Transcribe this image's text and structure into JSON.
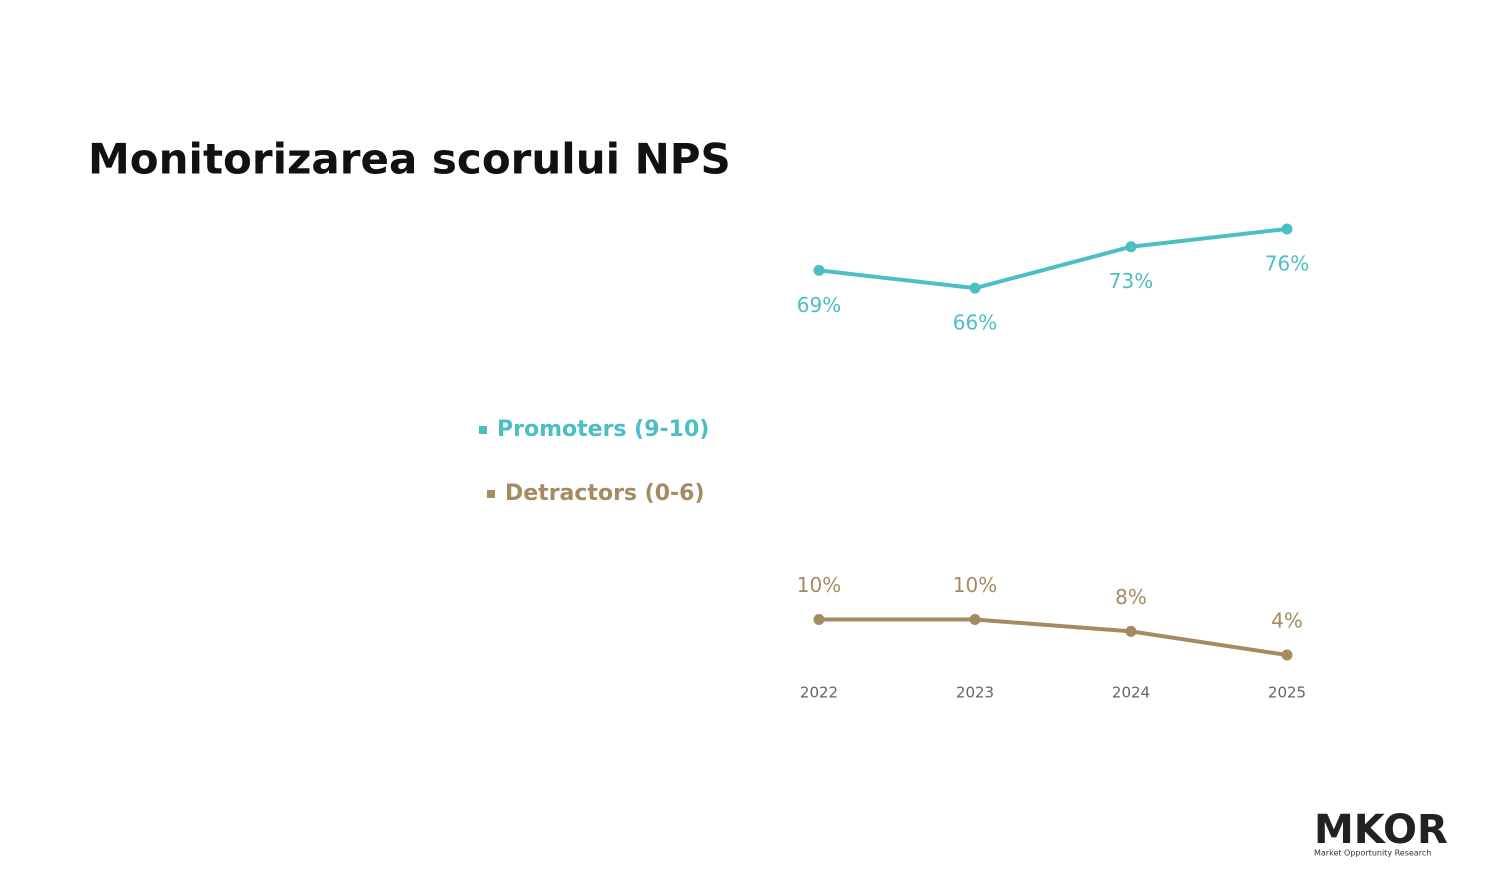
{
  "chart_data": {
    "type": "line",
    "title": "Monitorizarea scorului NPS",
    "categories": [
      "2022",
      "2023",
      "2024",
      "2025"
    ],
    "series": [
      {
        "name": "Promoters (9-10)",
        "color": "#4bbfc4",
        "values": [
          69,
          66,
          73,
          76
        ],
        "value_labels": [
          "69%",
          "66%",
          "73%",
          "76%"
        ]
      },
      {
        "name": "Detractors (0-6)",
        "color": "#a48b62",
        "values": [
          10,
          10,
          8,
          4
        ],
        "value_labels": [
          "10%",
          "10%",
          "8%",
          "4%"
        ]
      }
    ],
    "ylim": [
      0,
      80
    ]
  },
  "logo": {
    "name": "MKOR",
    "tagline": "Market Opportunity Research"
  }
}
